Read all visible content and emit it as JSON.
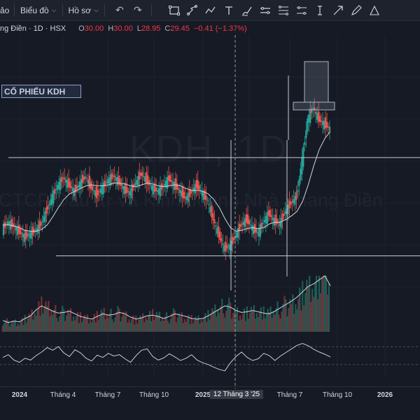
{
  "toolbar": {
    "partial_menu": "ảo",
    "chart_menu": "Biểu đồ",
    "profile_menu": "Hồ sơ",
    "undo_icon": "undo-icon",
    "redo_icon": "redo-icon",
    "drawing_tools": [
      "rectangle-icon",
      "path-icon",
      "polyline-icon",
      "text-icon",
      "brush-icon",
      "parallel-channel-icon",
      "fib-icon",
      "range-icon",
      "cursor-text-icon",
      "arrow-icon",
      "pen-icon",
      "triangle-icon"
    ]
  },
  "legend": {
    "symbol": "ng Điền · 1D · HSX",
    "o_label": "O",
    "o_value": "30.00",
    "h_label": "H",
    "h_value": "30.00",
    "l_label": "L",
    "l_value": "28.95",
    "c_label": "C",
    "c_value": "29.45",
    "change": "−0.41 (−1.37%)"
  },
  "watermark": {
    "title": "KDH, 1D",
    "subtitle": "CTCP Đầu tư và Kinh doanh Nhà Khang Điền"
  },
  "annotation": {
    "text": "CỔ PHIẾU KDH"
  },
  "colors": {
    "background": "#161a25",
    "up": "#26a69a",
    "down": "#ef5350",
    "line": "#d1d4dc",
    "crosshair": "#9598a1",
    "volume_up": "#1e5a55",
    "volume_down": "#7a2e34"
  },
  "time_axis": [
    {
      "label": "2024",
      "year": true
    },
    {
      "label": "Tháng 4",
      "year": false
    },
    {
      "label": "Tháng 7",
      "year": false
    },
    {
      "label": "Tháng 10",
      "year": false
    },
    {
      "label": "2025",
      "year": true
    },
    {
      "label": "12 Tháng 3 '25",
      "year": false,
      "cursor": true
    },
    {
      "label": "Tháng 7",
      "year": false
    },
    {
      "label": "Tháng 10",
      "year": false
    },
    {
      "label": "2026",
      "year": true
    }
  ],
  "chart_data": {
    "type": "line",
    "price_close": [
      29.5,
      30.2,
      29.8,
      29.2,
      28.6,
      28.9,
      29.3,
      30.0,
      31.5,
      33.0,
      34.2,
      35.1,
      34.3,
      33.6,
      34.5,
      35.2,
      34.0,
      33.2,
      34.0,
      34.8,
      35.3,
      34.6,
      33.8,
      33.4,
      34.5,
      35.5,
      34.8,
      34.0,
      33.6,
      34.2,
      35.0,
      34.3,
      33.6,
      32.8,
      33.5,
      34.3,
      33.4,
      32.5,
      30.5,
      28.8,
      27.3,
      27.6,
      28.7,
      29.9,
      30.5,
      29.6,
      29.0,
      30.2,
      31.2,
      30.3,
      30.1,
      31.4,
      32.3,
      33.0,
      37.0,
      41.5,
      42.8,
      41.5,
      41.0,
      40.5
    ],
    "ma": [
      29.9,
      29.9,
      29.8,
      29.6,
      29.3,
      29.2,
      29.2,
      29.4,
      29.9,
      30.8,
      31.8,
      32.7,
      33.3,
      33.6,
      33.9,
      34.2,
      34.3,
      34.2,
      34.2,
      34.3,
      34.5,
      34.5,
      34.4,
      34.2,
      34.1,
      34.3,
      34.5,
      34.4,
      34.2,
      34.1,
      34.2,
      34.3,
      34.2,
      33.9,
      33.7,
      33.7,
      33.6,
      33.3,
      32.7,
      31.8,
      30.6,
      29.6,
      29.2,
      29.3,
      29.5,
      29.6,
      29.5,
      29.6,
      30.0,
      30.2,
      30.2,
      30.5,
      30.9,
      31.4,
      32.5,
      34.3,
      36.4,
      38.2,
      39.4,
      40.2
    ],
    "volume": [
      1.7,
      1.4,
      1.6,
      1.5,
      2.0,
      2.4,
      3.3,
      3.9,
      3.5,
      3.1,
      2.8,
      2.9,
      3.1,
      2.7,
      2.3,
      2.1,
      1.9,
      2.3,
      2.7,
      2.5,
      2.6,
      2.9,
      2.7,
      2.2,
      1.9,
      2.1,
      2.4,
      2.5,
      2.3,
      2.0,
      2.3,
      2.7,
      2.5,
      2.3,
      2.0,
      1.9,
      2.0,
      2.4,
      2.9,
      3.4,
      3.9,
      3.7,
      3.2,
      2.9,
      3.0,
      3.2,
      3.0,
      2.8,
      2.7,
      3.1,
      3.6,
      4.1,
      4.6,
      5.2,
      6.0,
      6.8,
      7.2,
      7.8,
      8.4,
      6.9
    ],
    "rsi": [
      46,
      52,
      40,
      35,
      44,
      40,
      50,
      58,
      68,
      62,
      70,
      56,
      48,
      63,
      56,
      44,
      38,
      51,
      46,
      55,
      49,
      52,
      43,
      35,
      50,
      62,
      65,
      48,
      40,
      45,
      54,
      47,
      39,
      44,
      52,
      40,
      34,
      30,
      24,
      19,
      16,
      34,
      48,
      58,
      46,
      39,
      43,
      55,
      50,
      39,
      49,
      57,
      65,
      73,
      77,
      72,
      64,
      58,
      53,
      47
    ],
    "horizontal_levels": [
      37.3,
      26.5
    ],
    "ylim": [
      20,
      50
    ]
  }
}
